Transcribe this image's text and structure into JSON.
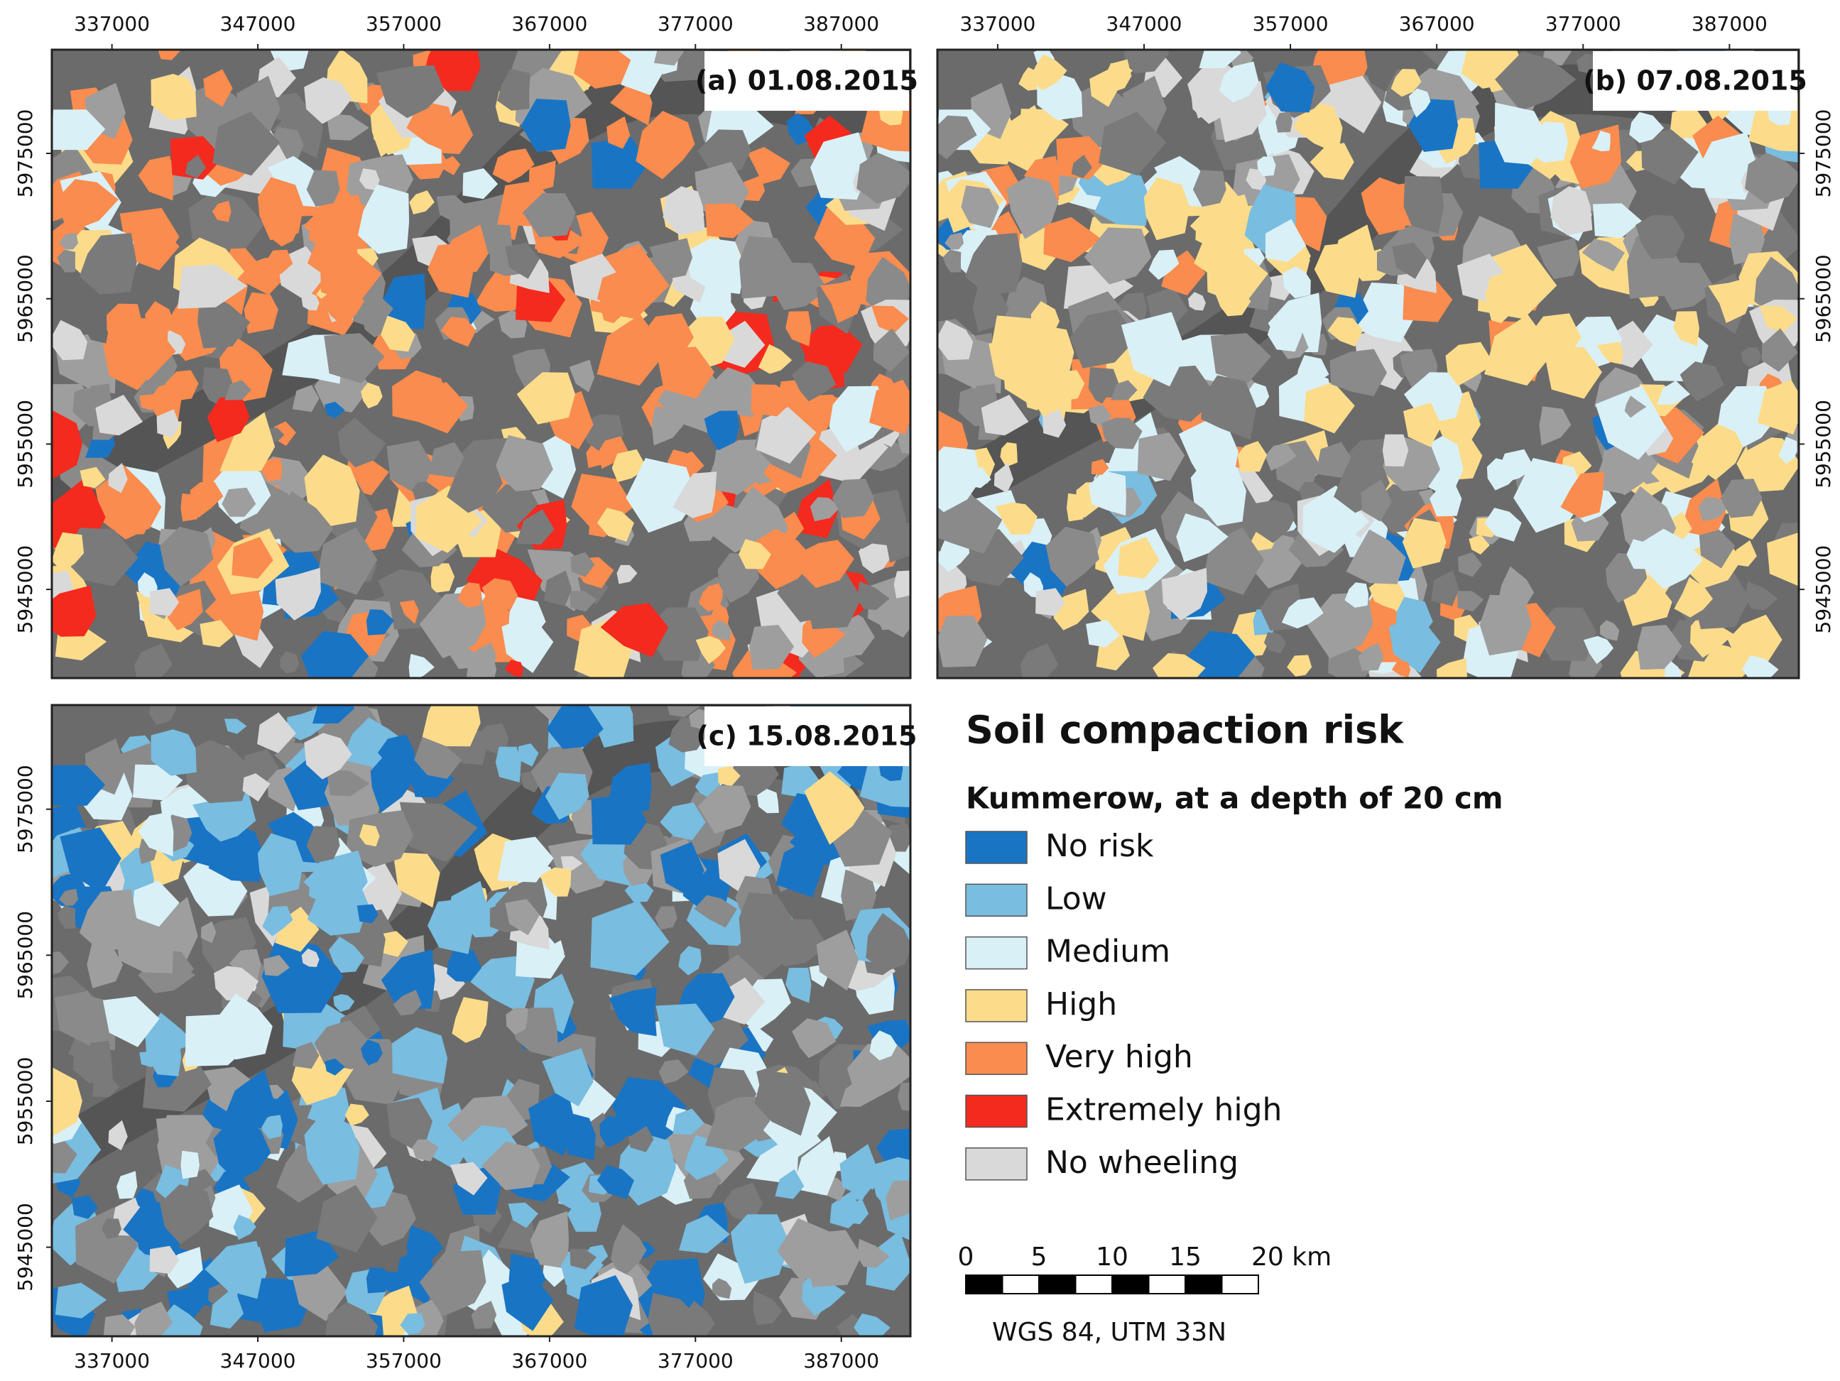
{
  "panels": [
    {
      "label": "(a) 01.08.2015"
    },
    {
      "label": "(b) 07.08.2015"
    },
    {
      "label": "(c) 15.08.2015"
    }
  ],
  "xticks": [
    337000,
    347000,
    357000,
    367000,
    377000,
    387000
  ],
  "yticks": [
    5975000,
    5965000,
    5955000,
    5945000
  ],
  "legend": {
    "title": "Soil compaction risk",
    "subtitle": "Kummerow, at a depth of 20 cm",
    "items": [
      {
        "label": "No risk",
        "color": "#1a74c4"
      },
      {
        "label": "Low",
        "color": "#79bde0"
      },
      {
        "label": "Medium",
        "color": "#d9f0f7"
      },
      {
        "label": "High",
        "color": "#fcdc8a"
      },
      {
        "label": "Very high",
        "color": "#f98c4e"
      },
      {
        "label": "Extremely high",
        "color": "#f42a1e"
      },
      {
        "label": "No wheeling",
        "color": "#d9d9d9"
      }
    ]
  },
  "scale_bar": {
    "ticks": [
      "0",
      "5",
      "10",
      "15",
      "20 km"
    ]
  },
  "crs": "WGS 84, UTM 33N"
}
